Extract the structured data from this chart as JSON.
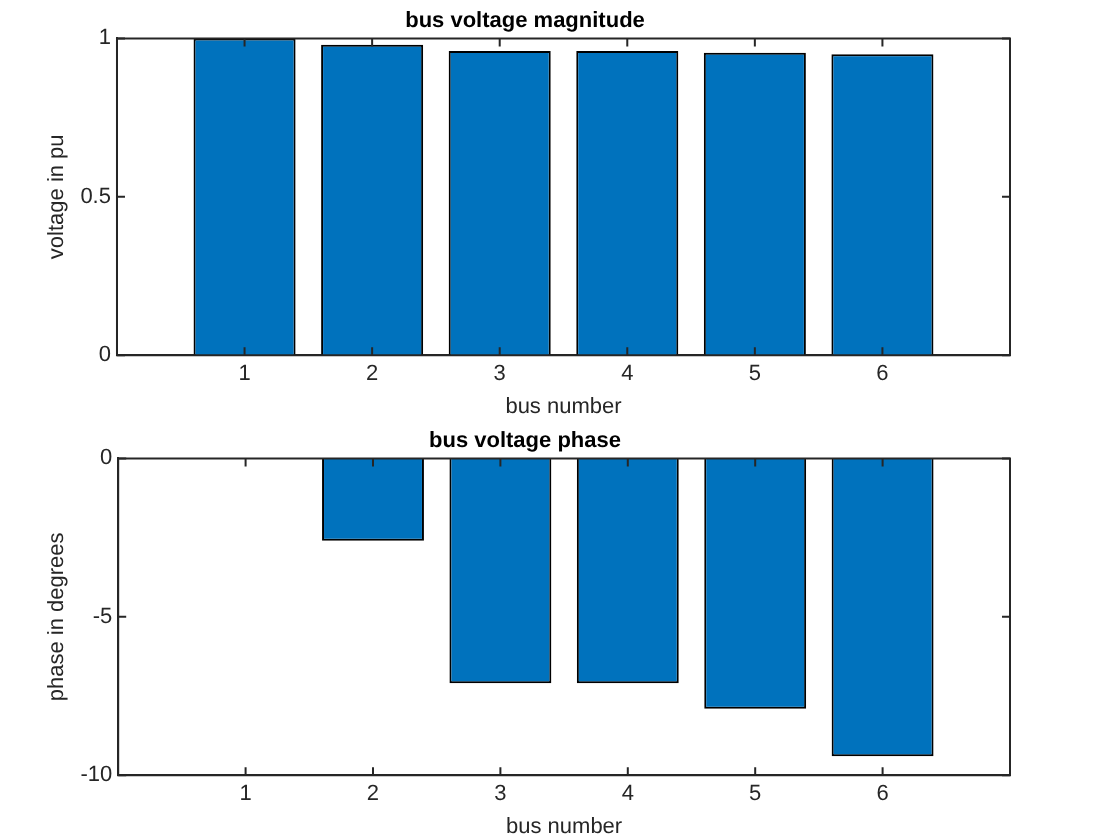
{
  "chart_data": [
    {
      "type": "bar",
      "title": "bus voltage magnitude",
      "xlabel": "bus number",
      "ylabel": "voltage in pu",
      "x": [
        1,
        2,
        3,
        4,
        5,
        6
      ],
      "values": [
        1.0,
        0.98,
        0.96,
        0.96,
        0.955,
        0.95
      ],
      "color": "#0072bd",
      "xlim": [
        0,
        7
      ],
      "xticks": [
        1,
        2,
        3,
        4,
        5,
        6
      ],
      "ylim": [
        0,
        1
      ],
      "yticks": [
        0,
        0.5,
        1
      ],
      "grid": false,
      "legend": false
    },
    {
      "type": "bar",
      "title": "bus voltage phase",
      "xlabel": "bus number",
      "ylabel": "phase in degrees",
      "x": [
        1,
        2,
        3,
        4,
        5,
        6
      ],
      "values": [
        0,
        -2.6,
        -7.1,
        -7.1,
        -7.9,
        -9.4
      ],
      "color": "#0072bd",
      "xlim": [
        0,
        7
      ],
      "xticks": [
        1,
        2,
        3,
        4,
        5,
        6
      ],
      "ylim": [
        -10,
        0
      ],
      "yticks": [
        -10,
        -5,
        0
      ],
      "grid": false,
      "legend": false
    }
  ]
}
